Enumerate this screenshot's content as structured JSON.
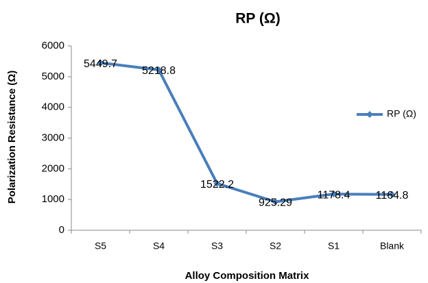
{
  "chart_data": {
    "type": "line",
    "title": "RP (Ω)",
    "x_label": "Alloy Composition Matrix",
    "y_label": "Polarization Resistance (Ω)",
    "categories": [
      "S5",
      "S4",
      "S3",
      "S2",
      "S1",
      "Blank"
    ],
    "series": [
      {
        "name": "RP (Ω)",
        "color": "#4a7ebb",
        "values": [
          5449.7,
          5218.8,
          1522.2,
          925.29,
          1178.4,
          1164.8
        ]
      }
    ],
    "ylim": [
      0,
      6000
    ],
    "yticks": [
      0,
      1000,
      2000,
      3000,
      4000,
      5000,
      6000
    ],
    "grid": false,
    "legend": "right",
    "data_labels": true
  }
}
